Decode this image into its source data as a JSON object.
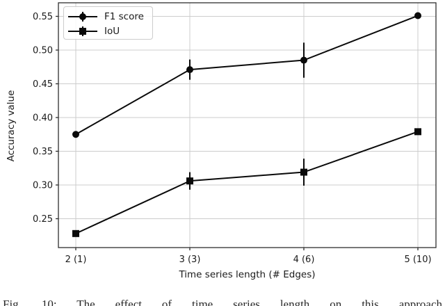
{
  "figure": {
    "caption": "Fig. 10:  The effect of time series length on this approach"
  },
  "chart_data": {
    "type": "line",
    "title": "",
    "xlabel": "Time series length (# Edges)",
    "ylabel": "Accuracy value",
    "categories": [
      "2 (1)",
      "3 (3)",
      "4 (6)",
      "5 (10)"
    ],
    "series": [
      {
        "name": "F1 score",
        "marker": "circle",
        "values": [
          0.375,
          0.471,
          0.485,
          0.551
        ],
        "errors": [
          0.004,
          0.015,
          0.026,
          0.004
        ]
      },
      {
        "name": "IoU",
        "marker": "square",
        "values": [
          0.228,
          0.306,
          0.319,
          0.379
        ],
        "errors": [
          0.004,
          0.013,
          0.02,
          0.004
        ]
      }
    ],
    "yticks": [
      0.25,
      0.3,
      0.35,
      0.4,
      0.45,
      0.5,
      0.55
    ],
    "yticklabels": [
      "0.25",
      "0.30",
      "0.35",
      "0.40",
      "0.45",
      "0.50",
      "0.55"
    ],
    "ylim": [
      0.2072,
      0.5701
    ],
    "grid": true,
    "legend_position": "upper left",
    "colors": {
      "line": "#0a0a0a",
      "grid": "#cccccc",
      "spine": "#2e2e2e",
      "text": "#1a1a1a"
    }
  }
}
